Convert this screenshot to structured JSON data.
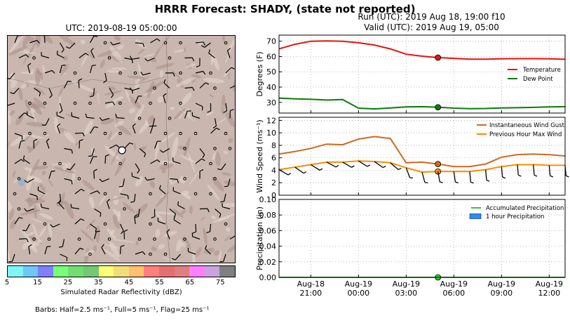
{
  "title": "HRRR Forecast: SHADY, (state not reported)",
  "map": {
    "title": "UTC: 2019-08-19 05:00:00",
    "colorbar": {
      "label": "Simulated Radar Reflectivity (dBZ)",
      "ticks": [
        "5",
        "15",
        "25",
        "35",
        "45",
        "55",
        "65",
        "75"
      ],
      "colors": [
        "#7ff5f5",
        "#6fc6f7",
        "#7f7fff",
        "#77ff77",
        "#6fdf6f",
        "#73c873",
        "#ffff77",
        "#f2dd77",
        "#ffc06f",
        "#ff7f7f",
        "#e56f6f",
        "#df7f7f",
        "#ff7fff",
        "#c9a2e0",
        "#7f7f7f"
      ]
    },
    "barbs_note": "Barbs: Half=2.5 ms⁻¹, Full=5 ms⁻¹, Flag=25 ms⁻¹"
  },
  "run": {
    "line1": "Run (UTC): 2019 Aug 18, 19:00 f10",
    "line2": "Valid (UTC): 2019 Aug 19, 05:00"
  },
  "x_ticks": [
    {
      "label1": "Aug-18",
      "label2": "21:00",
      "h": 2
    },
    {
      "label1": "Aug-19",
      "label2": "00:00",
      "h": 5
    },
    {
      "label1": "Aug-19",
      "label2": "03:00",
      "h": 8
    },
    {
      "label1": "Aug-19",
      "label2": "06:00",
      "h": 11
    },
    {
      "label1": "Aug-19",
      "label2": "09:00",
      "h": 14
    },
    {
      "label1": "Aug-19",
      "label2": "12:00",
      "h": 17
    }
  ],
  "chart_data": [
    {
      "type": "line",
      "ylabel": "Degrees (F)",
      "ylim": [
        23,
        74
      ],
      "yticks": [
        "30",
        "40",
        "50",
        "60",
        "70"
      ],
      "x_hours_from_aug18_19utc": [
        0,
        1,
        2,
        3,
        4,
        5,
        6,
        7,
        8,
        9,
        10,
        11,
        12,
        13,
        14,
        15,
        16,
        17,
        18
      ],
      "current_hour": 10,
      "grid": true,
      "legend_position": "right",
      "series": [
        {
          "name": "Temperature",
          "color": "#e8120c",
          "values": [
            65,
            68,
            70,
            70.2,
            70,
            69,
            67.5,
            65,
            61.5,
            60.2,
            59.3,
            58.8,
            58.3,
            58.3,
            58.5,
            58.6,
            58.6,
            58.5,
            58.2
          ]
        },
        {
          "name": "Dew Point",
          "color": "#0b7a0b",
          "values": [
            32.8,
            32.3,
            32,
            31.5,
            31.8,
            26.2,
            25.7,
            26.3,
            27,
            27.2,
            26.8,
            26.2,
            25.9,
            26,
            26.3,
            26.5,
            26.7,
            27,
            27.2
          ]
        }
      ]
    },
    {
      "type": "line",
      "ylabel": "Wind Speed (ms⁻¹)",
      "ylim": [
        0,
        12.5
      ],
      "yticks": [
        "0",
        "2",
        "4",
        "6",
        "8",
        "10",
        "12"
      ],
      "x_hours_from_aug18_19utc": [
        0,
        1,
        2,
        3,
        4,
        5,
        6,
        7,
        8,
        9,
        10,
        11,
        12,
        13,
        14,
        15,
        16,
        17,
        18
      ],
      "current_hour": 10,
      "grid": true,
      "legend_position": "top-right",
      "series": [
        {
          "name": "Instantaneous Wind Gust",
          "color": "#d2691e",
          "values": [
            6.6,
            7.0,
            7.5,
            8.2,
            8.1,
            9.0,
            9.4,
            9.1,
            5.2,
            5.3,
            5.0,
            4.6,
            4.6,
            5.0,
            6.1,
            6.5,
            6.6,
            6.5,
            6.3
          ]
        },
        {
          "name": "Previous Hour Max Wind",
          "color": "#ff8c00",
          "values": [
            4.1,
            4.5,
            4.9,
            5.3,
            5.3,
            5.5,
            5.4,
            5.2,
            4.4,
            3.7,
            3.8,
            3.8,
            3.8,
            4.1,
            4.6,
            4.9,
            4.9,
            4.8,
            4.8
          ]
        }
      ]
    },
    {
      "type": "bar",
      "ylabel": "Precipitation (in)",
      "ylim": [
        0,
        0.1
      ],
      "yticks": [
        "0.00",
        "0.02",
        "0.04",
        "0.06",
        "0.08",
        "0.10"
      ],
      "x_hours_from_aug18_19utc": [
        0,
        1,
        2,
        3,
        4,
        5,
        6,
        7,
        8,
        9,
        10,
        11,
        12,
        13,
        14,
        15,
        16,
        17,
        18
      ],
      "current_hour": 10,
      "grid": true,
      "legend_position": "top-right",
      "series": [
        {
          "name": "Accumulated Precipitation",
          "color": "#32cd32",
          "values": [
            0,
            0,
            0,
            0,
            0,
            0,
            0,
            0,
            0,
            0,
            0,
            0,
            0,
            0,
            0,
            0,
            0,
            0,
            0
          ]
        },
        {
          "name": "1 hour Precipitation",
          "color": "#1e90ff",
          "values": [
            0,
            0,
            0,
            0,
            0,
            0,
            0,
            0,
            0,
            0,
            0,
            0,
            0,
            0,
            0,
            0,
            0,
            0,
            0
          ]
        }
      ]
    }
  ]
}
